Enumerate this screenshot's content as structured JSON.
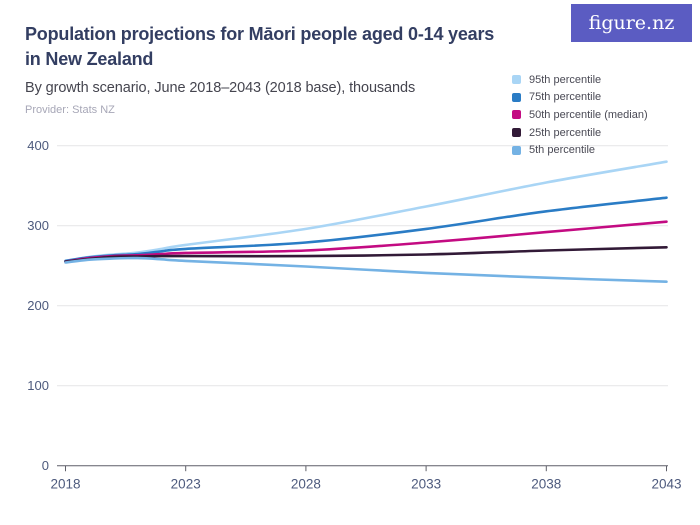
{
  "header": {
    "title_line1": "Population projections for Māori people aged 0-14 years",
    "title_line2": "in New Zealand",
    "subtitle": "By growth scenario, June 2018–2043 (2018 base), thousands",
    "provider": "Provider: Stats NZ"
  },
  "logo": {
    "text": "figure.nz"
  },
  "colors": {
    "title": "#333e62",
    "subtitle": "#45454f",
    "provider": "#a7a7b7",
    "logo_background": "#5b5cc2",
    "logo_text": "#ffffff",
    "gridline": "#e8e8ea",
    "axis_line": "#5f5f68",
    "axis_tick_label": "#4d5a7d",
    "legend_label": "#4a4a55"
  },
  "chart_data": {
    "type": "line",
    "title": "Population projections for Māori people aged 0-14 years in New Zealand",
    "subtitle": "By growth scenario, June 2018–2043 (2018 base), thousands",
    "xlabel": "",
    "ylabel": "thousands",
    "xlim": [
      2018,
      2043
    ],
    "ylim": [
      0,
      400
    ],
    "xticks": [
      "2018",
      "2023",
      "2028",
      "2033",
      "2038",
      "2043"
    ],
    "yticks": [
      "0",
      "100",
      "200",
      "300",
      "400"
    ],
    "grid": "horizontal",
    "legend_position": "top-right",
    "x": [
      2018,
      2019,
      2020,
      2021,
      2022,
      2023,
      2028,
      2033,
      2038,
      2043
    ],
    "series": [
      {
        "name": "95th percentile",
        "color": "#a9d5f5",
        "values": [
          256,
          261,
          264,
          266.5,
          271,
          276,
          296,
          324,
          354,
          380
        ]
      },
      {
        "name": "75th percentile",
        "color": "#2a7cc5",
        "values": [
          256,
          260.5,
          263,
          264.5,
          268,
          271,
          279,
          296,
          318,
          335
        ]
      },
      {
        "name": "50th percentile (median)",
        "color": "#c30b82",
        "values": [
          255,
          259.5,
          262,
          263,
          264.5,
          266,
          269,
          279,
          292,
          305
        ]
      },
      {
        "name": "25th percentile",
        "color": "#321a37",
        "values": [
          255,
          258.5,
          261,
          261.5,
          262,
          262,
          262,
          264,
          269,
          273
        ]
      },
      {
        "name": "5th percentile",
        "color": "#74b2e4",
        "values": [
          254,
          257.5,
          259,
          259.5,
          258,
          256,
          249,
          241,
          235,
          230
        ]
      }
    ]
  }
}
